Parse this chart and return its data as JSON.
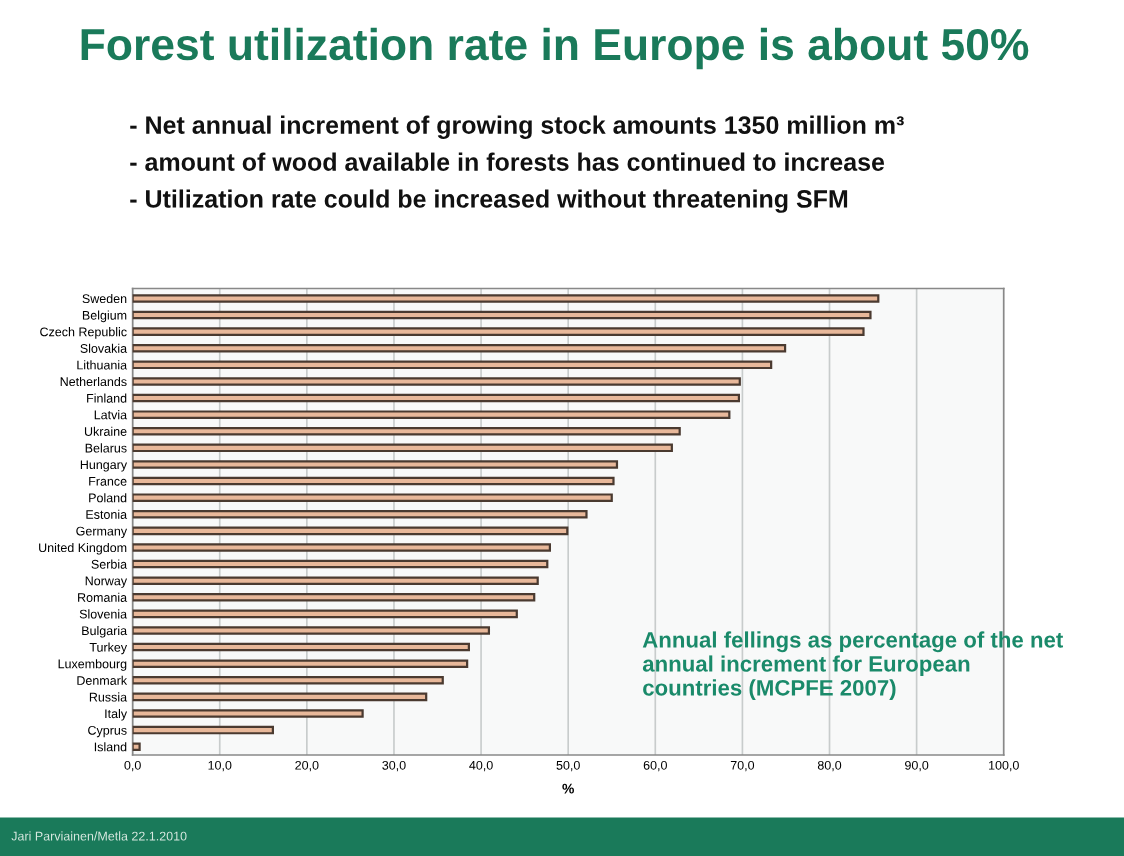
{
  "chart_data": {
    "type": "bar",
    "orientation": "horizontal",
    "title": "Forest utilization rate in Europe is about 50%",
    "subtitle": "- Net annual increment of growing stock amounts 1350 million m³\n- amount of wood available in forests has continued to increase\n- Utilization rate could be increased without threatening SFM",
    "categories": [
      "Sweden",
      "Belgium",
      "Czech Republic",
      "Slovakia",
      "Lithuania",
      "Netherlands",
      "Finland",
      "Latvia",
      "Ukraine",
      "Belarus",
      "Hungary",
      "France",
      "Poland",
      "Estonia",
      "Germany",
      "United Kingdom",
      "Serbia",
      "Norway",
      "Romania",
      "Slovenia",
      "Bulgaria",
      "Turkey",
      "Luxembourg",
      "Denmark",
      "Russia",
      "Italy",
      "Cyprus",
      "Island"
    ],
    "values": [
      85.6,
      84.7,
      83.9,
      74.9,
      73.3,
      69.7,
      69.6,
      68.5,
      62.8,
      61.9,
      55.6,
      55.2,
      55.0,
      52.1,
      49.9,
      47.9,
      47.6,
      46.5,
      46.1,
      44.1,
      40.9,
      38.6,
      38.4,
      35.6,
      33.7,
      26.4,
      16.1,
      0.8
    ],
    "color": "#e8b89a",
    "xlabel": "%",
    "xlim": [
      0,
      100
    ],
    "xticks": [
      {
        "value": 0,
        "label": "0,0"
      },
      {
        "value": 10,
        "label": "10,0"
      },
      {
        "value": 20,
        "label": "20,0"
      },
      {
        "value": 30,
        "label": "30,0"
      },
      {
        "value": 40,
        "label": "40,0"
      },
      {
        "value": 50,
        "label": "50,0"
      },
      {
        "value": 60,
        "label": "60,0"
      },
      {
        "value": 70,
        "label": "70,0"
      },
      {
        "value": 80,
        "label": "80,0"
      },
      {
        "value": 90,
        "label": "90,0"
      },
      {
        "value": 100,
        "label": "100,0"
      }
    ],
    "grid": "x",
    "legend": false,
    "annotations": [
      "Annual fellings as percentage of the net\nannual increment for European\ncountries (MCPFE 2007)",
      "Jari Parviainen/Metla 22.1.2010"
    ]
  }
}
